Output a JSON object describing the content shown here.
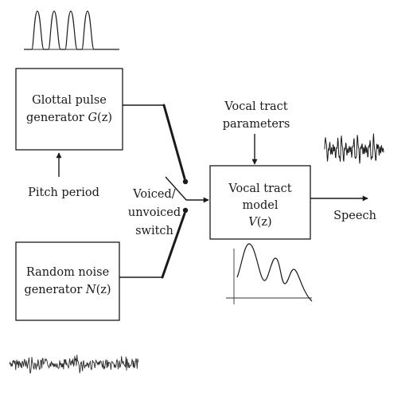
{
  "blocks": {
    "glottal": {
      "line1": "Glottal pulse",
      "line2_text": "generator ",
      "line2_symbol": "G",
      "line2_arg": "(z)"
    },
    "noise": {
      "line1": "Random noise",
      "line2_text": "generator ",
      "line2_symbol": "N",
      "line2_arg": "(z)"
    },
    "vocal_tract": {
      "line1": "Vocal tract",
      "line2": "model",
      "line3_symbol": "V",
      "line3_arg": "(z)"
    }
  },
  "labels": {
    "pitch_period": "Pitch period",
    "vt_params_line1": "Vocal tract",
    "vt_params_line2": "parameters",
    "switch_line1": "Voiced/",
    "switch_line2": "unvoiced",
    "switch_line3": "switch",
    "output": "Speech"
  },
  "icons": {
    "pulse_train": "glottal-pulse-train-icon",
    "noise_waveform": "noise-waveform-icon",
    "speech_waveform": "speech-waveform-icon",
    "spectrum": "spectral-envelope-icon"
  },
  "colors": {
    "ink": "#1a1a1a",
    "background": "#ffffff"
  }
}
